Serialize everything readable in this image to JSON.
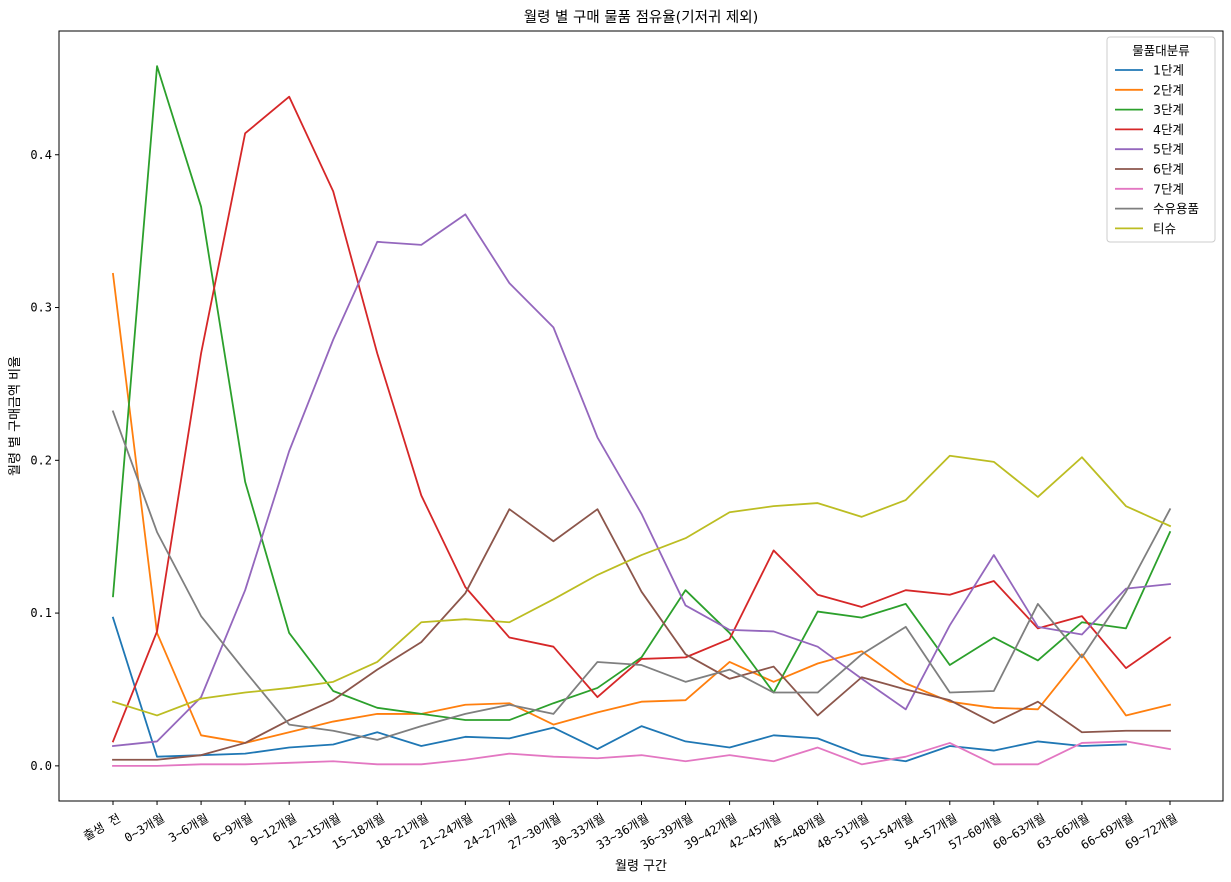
{
  "chart_data": {
    "type": "line",
    "title": "월령 별 구매 물품 점유율(기저귀 제외)",
    "xlabel": "월령 구간",
    "ylabel": "월령 별 구매금액 비율",
    "ylim": [
      -0.023,
      0.481
    ],
    "yticks": [
      0.0,
      0.1,
      0.2,
      0.3,
      0.4
    ],
    "ytick_labels": [
      "0.0",
      "0.1",
      "0.2",
      "0.3",
      "0.4"
    ],
    "grid": false,
    "legend_title": "물품대분류",
    "legend_position": "top-right",
    "categories": [
      "출생 전",
      "0~3개월",
      "3~6개월",
      "6~9개월",
      "9~12개월",
      "12~15개월",
      "15~18개월",
      "18~21개월",
      "21~24개월",
      "24~27개월",
      "27~30개월",
      "30~33개월",
      "33~36개월",
      "36~39개월",
      "39~42개월",
      "42~45개월",
      "45~48개월",
      "48~51개월",
      "51~54개월",
      "54~57개월",
      "57~60개월",
      "60~63개월",
      "63~66개월",
      "66~69개월",
      "69~72개월"
    ],
    "series": [
      {
        "name": "1단계",
        "color": "#1f77b4",
        "values": [
          0.097,
          0.006,
          0.007,
          0.008,
          0.012,
          0.014,
          0.022,
          0.013,
          0.019,
          0.018,
          0.025,
          0.011,
          0.026,
          0.016,
          0.012,
          0.02,
          0.018,
          0.007,
          0.003,
          0.013,
          0.01,
          0.016,
          0.013,
          0.014,
          null
        ]
      },
      {
        "name": "2단계",
        "color": "#ff7f0e",
        "values": [
          0.322,
          0.087,
          0.02,
          0.015,
          0.022,
          0.029,
          0.034,
          0.034,
          0.04,
          0.041,
          0.027,
          0.035,
          0.042,
          0.043,
          0.068,
          0.055,
          0.067,
          0.075,
          0.054,
          0.042,
          0.038,
          0.037,
          0.073,
          0.033,
          0.04
        ]
      },
      {
        "name": "3단계",
        "color": "#2ca02c",
        "values": [
          0.111,
          0.458,
          0.366,
          0.186,
          0.087,
          0.049,
          0.038,
          0.034,
          0.03,
          0.03,
          0.041,
          0.051,
          0.071,
          0.115,
          0.087,
          0.048,
          0.101,
          0.097,
          0.106,
          0.066,
          0.084,
          0.069,
          0.094,
          0.09,
          0.153
        ]
      },
      {
        "name": "4단계",
        "color": "#d62728",
        "values": [
          0.016,
          0.088,
          0.27,
          0.414,
          0.438,
          0.376,
          0.27,
          0.177,
          0.117,
          0.084,
          0.078,
          0.045,
          0.07,
          0.071,
          0.083,
          0.141,
          0.112,
          0.104,
          0.115,
          0.112,
          0.121,
          0.09,
          0.098,
          0.064,
          0.084
        ]
      },
      {
        "name": "5단계",
        "color": "#9467bd",
        "values": [
          0.013,
          0.016,
          0.045,
          0.115,
          0.206,
          0.279,
          0.343,
          0.341,
          0.361,
          0.316,
          0.287,
          0.215,
          0.165,
          0.105,
          0.089,
          0.088,
          0.078,
          0.057,
          0.037,
          0.092,
          0.138,
          0.091,
          0.086,
          0.116,
          0.119
        ]
      },
      {
        "name": "6단계",
        "color": "#8c564b",
        "values": [
          0.004,
          0.004,
          0.007,
          0.015,
          0.03,
          0.043,
          0.063,
          0.081,
          0.113,
          0.168,
          0.147,
          0.168,
          0.114,
          0.073,
          0.057,
          0.065,
          0.033,
          0.058,
          0.05,
          0.043,
          0.028,
          0.042,
          0.022,
          0.023,
          0.023
        ]
      },
      {
        "name": "7단계",
        "color": "#e377c2",
        "values": [
          0.0,
          0.0,
          0.001,
          0.001,
          0.002,
          0.003,
          0.001,
          0.001,
          0.004,
          0.008,
          0.006,
          0.005,
          0.007,
          0.003,
          0.007,
          0.003,
          0.012,
          0.001,
          0.006,
          0.015,
          0.001,
          0.001,
          0.015,
          0.016,
          0.011
        ]
      },
      {
        "name": "수유용품",
        "color": "#7f7f7f",
        "values": [
          0.232,
          0.153,
          0.098,
          0.062,
          0.027,
          0.023,
          0.017,
          0.026,
          0.034,
          0.04,
          0.034,
          0.068,
          0.066,
          0.055,
          0.063,
          0.048,
          0.048,
          0.073,
          0.091,
          0.048,
          0.049,
          0.106,
          0.071,
          0.114,
          0.168
        ]
      },
      {
        "name": "티슈",
        "color": "#bcbd22",
        "values": [
          0.042,
          0.033,
          0.044,
          0.048,
          0.051,
          0.055,
          0.068,
          0.094,
          0.096,
          0.094,
          0.109,
          0.125,
          0.138,
          0.149,
          0.166,
          0.17,
          0.172,
          0.163,
          0.174,
          0.203,
          0.199,
          0.176,
          0.202,
          0.17,
          0.157
        ]
      }
    ]
  }
}
